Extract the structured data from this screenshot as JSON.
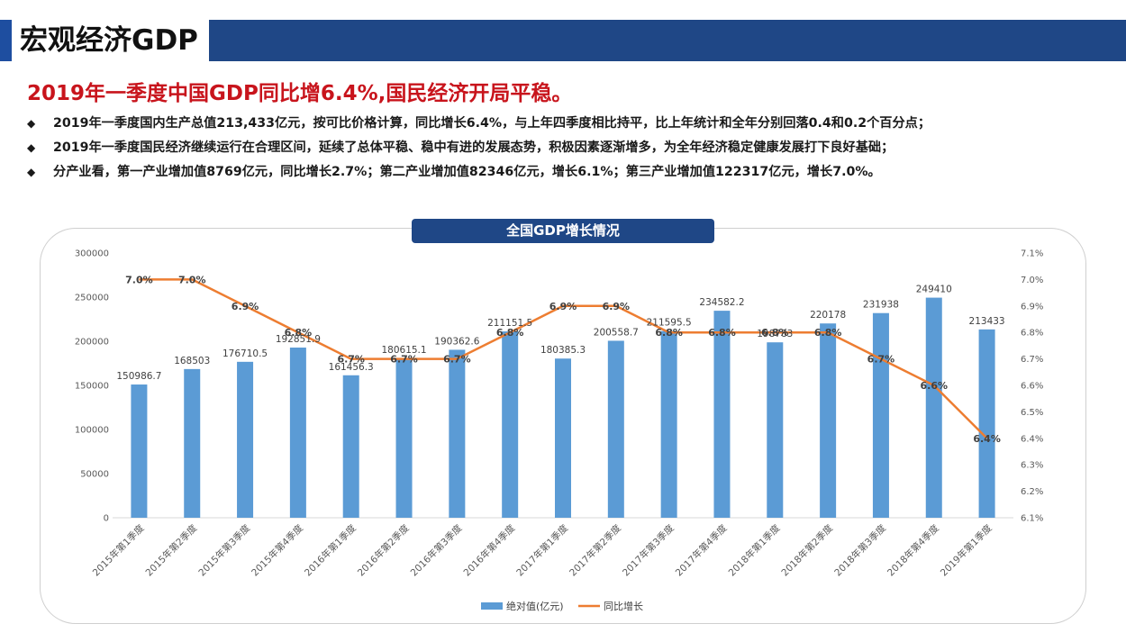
{
  "header": {
    "title": "宏观经济GDP",
    "accent_color": "#1f4786"
  },
  "headline": "2019年一季度中国GDP同比增6.4%,国民经济开局平稳。",
  "bullets": [
    "2019年一季度国内生产总值213,433亿元，按可比价格计算，同比增长6.4%，与上年四季度相比持平，比上年统计和全年分别回落0.4和0.2个百分点；",
    "2019年一季度国民经济继续运行在合理区间，延续了总体平稳、稳中有进的发展态势，积极因素逐渐增多，为全年经济稳定健康发展打下良好基础；",
    "分产业看，第一产业增加值8769亿元，同比增长2.7%；第二产业增加值82346亿元，增长6.1%；第三产业增加值122317亿元，增长7.0%。"
  ],
  "bullet_marker": "◆",
  "chart_data": {
    "type": "bar",
    "title": "全国GDP增长情况",
    "categories": [
      "2015年第1季度",
      "2015年第2季度",
      "2015年第3季度",
      "2015年第4季度",
      "2016年第1季度",
      "2016年第2季度",
      "2016年第3季度",
      "2016年第4季度",
      "2017年第1季度",
      "2017年第2季度",
      "2017年第3季度",
      "2017年第4季度",
      "2018年第1季度",
      "2018年第2季度",
      "2018年第3季度",
      "2018年第4季度",
      "2019年第1季度"
    ],
    "series": [
      {
        "name": "绝对值(亿元)",
        "type": "bar",
        "axis": "left",
        "color": "#5b9bd5",
        "values": [
          150986.7,
          168503,
          176710.5,
          192851.9,
          161456.3,
          180615.1,
          190362.6,
          211151.5,
          180385.3,
          200558.7,
          211595.5,
          234582.2,
          198783,
          220178,
          231938,
          249410,
          213433
        ],
        "labels": [
          "150986.7",
          "168503",
          "176710.5",
          "192851.9",
          "161456.3",
          "180615.1",
          "190362.6",
          "211151.5",
          "180385.3",
          "200558.7",
          "211595.5",
          "234582.2",
          "198783",
          "220178",
          "231938",
          "249410",
          "213433"
        ]
      },
      {
        "name": "同比增长",
        "type": "line",
        "axis": "right",
        "color": "#ed7d31",
        "values": [
          7.0,
          7.0,
          6.9,
          6.8,
          6.7,
          6.7,
          6.7,
          6.8,
          6.9,
          6.9,
          6.8,
          6.8,
          6.8,
          6.8,
          6.7,
          6.6,
          6.4
        ],
        "labels": [
          "7.0%",
          "7.0%",
          "6.9%",
          "6.8%",
          "6.7%",
          "6.7%",
          "6.7%",
          "6.8%",
          "6.9%",
          "6.9%",
          "6.8%",
          "6.8%",
          "6.8%",
          "6.8%",
          "6.7%",
          "6.6%",
          "6.4%"
        ]
      }
    ],
    "y_left": {
      "min": 0,
      "max": 300000,
      "step": 50000,
      "ticks": [
        "0",
        "50000",
        "100000",
        "150000",
        "200000",
        "250000",
        "300000"
      ]
    },
    "y_right": {
      "min": 6.1,
      "max": 7.1,
      "step": 0.1,
      "ticks": [
        "6.1%",
        "6.2%",
        "6.3%",
        "6.4%",
        "6.5%",
        "6.6%",
        "6.7%",
        "6.8%",
        "6.9%",
        "7.0%",
        "7.1%"
      ]
    },
    "grid": false,
    "legend": "bottom"
  }
}
